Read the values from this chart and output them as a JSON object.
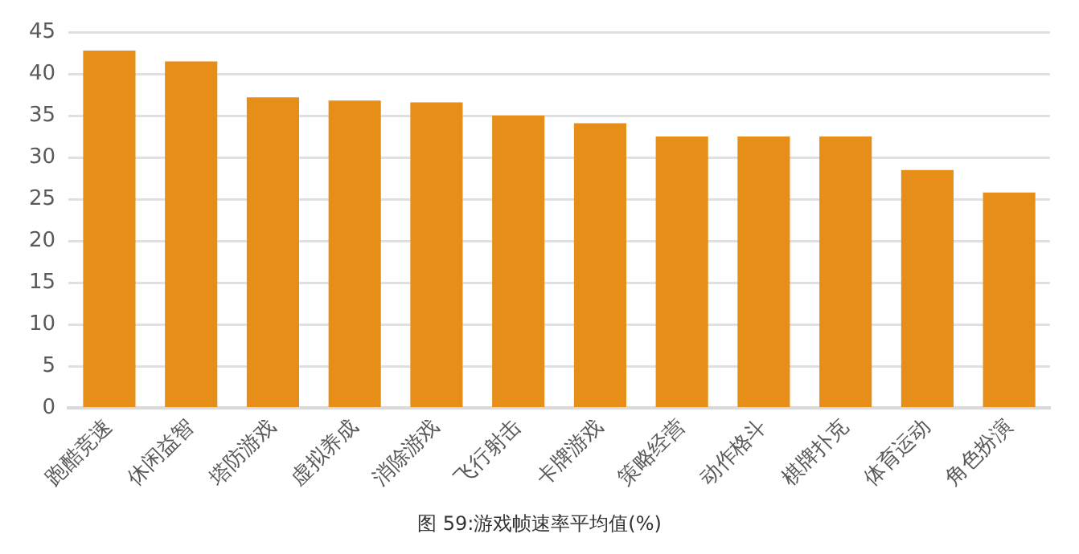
{
  "chart_data": {
    "type": "bar",
    "title": "图 59:游戏帧速率平均值(%)",
    "categories": [
      "跑酷竞速",
      "休闲益智",
      "塔防游戏",
      "虚拟养成",
      "消除游戏",
      "飞行射击",
      "卡牌游戏",
      "策略经营",
      "动作格斗",
      "棋牌扑克",
      "体育运动",
      "角色扮演"
    ],
    "values": [
      42.8,
      41.5,
      37.2,
      36.8,
      36.6,
      35.0,
      34.1,
      32.5,
      32.5,
      32.5,
      28.5,
      25.8
    ],
    "color": "#e68e17",
    "ylim": [
      0,
      45
    ],
    "yticks": [
      0,
      5,
      10,
      15,
      20,
      25,
      30,
      35,
      40,
      45
    ],
    "grid": "y"
  }
}
